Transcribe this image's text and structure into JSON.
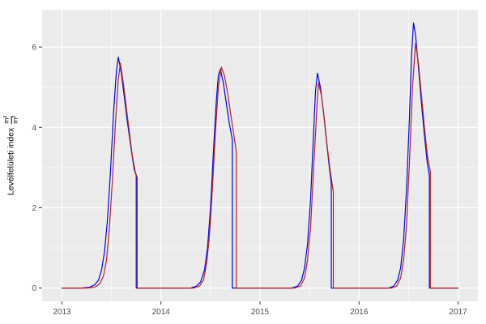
{
  "chart_data": {
    "type": "line",
    "title": "",
    "xlabel": "",
    "ylabel_text": "Levélfelületi index",
    "unit_numerator": "m²",
    "unit_denominator": "m²",
    "xlim": [
      2012.8,
      2017.2
    ],
    "ylim": [
      -0.33,
      6.93
    ],
    "x_ticks": [
      2013,
      2014,
      2015,
      2016,
      2017
    ],
    "y_ticks": [
      0,
      2,
      4,
      6
    ],
    "x_minor": [
      2013.5,
      2014.5,
      2015.5,
      2016.5
    ],
    "y_minor": [
      1,
      3,
      5
    ],
    "grid": true,
    "legend": "none",
    "panel_bg": "#EBEBEB",
    "grid_color": "#FFFFFF",
    "tick_color": "#333333",
    "label_color": "#4D4D4D",
    "series": [
      {
        "name": "blue",
        "color": "#0000EE",
        "points": [
          [
            2013.0,
            0
          ],
          [
            2013.2,
            0
          ],
          [
            2013.28,
            0.02
          ],
          [
            2013.33,
            0.08
          ],
          [
            2013.37,
            0.2
          ],
          [
            2013.4,
            0.45
          ],
          [
            2013.43,
            0.9
          ],
          [
            2013.46,
            1.7
          ],
          [
            2013.49,
            2.9
          ],
          [
            2013.52,
            4.3
          ],
          [
            2013.55,
            5.4
          ],
          [
            2013.57,
            5.75
          ],
          [
            2013.6,
            5.35
          ],
          [
            2013.63,
            4.75
          ],
          [
            2013.66,
            4.15
          ],
          [
            2013.7,
            3.45
          ],
          [
            2013.73,
            2.95
          ],
          [
            2013.75,
            2.8
          ],
          [
            2013.75,
            0
          ],
          [
            2014.0,
            0
          ],
          [
            2014.3,
            0
          ],
          [
            2014.36,
            0.05
          ],
          [
            2014.4,
            0.15
          ],
          [
            2014.44,
            0.45
          ],
          [
            2014.47,
            1.0
          ],
          [
            2014.5,
            2.0
          ],
          [
            2014.53,
            3.4
          ],
          [
            2014.56,
            4.7
          ],
          [
            2014.58,
            5.3
          ],
          [
            2014.6,
            5.45
          ],
          [
            2014.63,
            5.1
          ],
          [
            2014.66,
            4.6
          ],
          [
            2014.69,
            4.1
          ],
          [
            2014.72,
            3.7
          ],
          [
            2014.72,
            0
          ],
          [
            2015.0,
            0
          ],
          [
            2015.32,
            0
          ],
          [
            2015.38,
            0.05
          ],
          [
            2015.42,
            0.2
          ],
          [
            2015.45,
            0.5
          ],
          [
            2015.48,
            1.1
          ],
          [
            2015.51,
            2.2
          ],
          [
            2015.54,
            3.8
          ],
          [
            2015.56,
            4.9
          ],
          [
            2015.58,
            5.35
          ],
          [
            2015.61,
            5.0
          ],
          [
            2015.64,
            4.4
          ],
          [
            2015.67,
            3.7
          ],
          [
            2015.7,
            3.0
          ],
          [
            2015.72,
            2.6
          ],
          [
            2015.72,
            0
          ],
          [
            2016.0,
            0
          ],
          [
            2016.3,
            0
          ],
          [
            2016.35,
            0.05
          ],
          [
            2016.39,
            0.2
          ],
          [
            2016.42,
            0.5
          ],
          [
            2016.45,
            1.2
          ],
          [
            2016.48,
            2.5
          ],
          [
            2016.51,
            4.3
          ],
          [
            2016.53,
            5.8
          ],
          [
            2016.55,
            6.6
          ],
          [
            2016.57,
            6.3
          ],
          [
            2016.6,
            5.5
          ],
          [
            2016.63,
            4.6
          ],
          [
            2016.66,
            3.8
          ],
          [
            2016.69,
            3.1
          ],
          [
            2016.71,
            2.8
          ],
          [
            2016.71,
            0
          ],
          [
            2017.0,
            0
          ]
        ]
      },
      {
        "name": "red",
        "color": "#B22222",
        "points": [
          [
            2013.0,
            0
          ],
          [
            2013.25,
            0
          ],
          [
            2013.33,
            0.02
          ],
          [
            2013.38,
            0.1
          ],
          [
            2013.42,
            0.3
          ],
          [
            2013.45,
            0.7
          ],
          [
            2013.48,
            1.5
          ],
          [
            2013.51,
            2.7
          ],
          [
            2013.54,
            4.1
          ],
          [
            2013.57,
            5.2
          ],
          [
            2013.59,
            5.6
          ],
          [
            2013.62,
            5.1
          ],
          [
            2013.65,
            4.5
          ],
          [
            2013.68,
            3.9
          ],
          [
            2013.71,
            3.3
          ],
          [
            2013.74,
            2.9
          ],
          [
            2013.76,
            2.75
          ],
          [
            2013.76,
            0
          ],
          [
            2014.0,
            0
          ],
          [
            2014.33,
            0
          ],
          [
            2014.39,
            0.05
          ],
          [
            2014.43,
            0.2
          ],
          [
            2014.46,
            0.6
          ],
          [
            2014.49,
            1.3
          ],
          [
            2014.52,
            2.5
          ],
          [
            2014.55,
            3.9
          ],
          [
            2014.58,
            5.0
          ],
          [
            2014.61,
            5.5
          ],
          [
            2014.64,
            5.3
          ],
          [
            2014.67,
            4.9
          ],
          [
            2014.7,
            4.4
          ],
          [
            2014.73,
            3.9
          ],
          [
            2014.76,
            3.4
          ],
          [
            2014.76,
            0
          ],
          [
            2015.0,
            0
          ],
          [
            2015.35,
            0
          ],
          [
            2015.41,
            0.05
          ],
          [
            2015.45,
            0.25
          ],
          [
            2015.48,
            0.7
          ],
          [
            2015.51,
            1.5
          ],
          [
            2015.54,
            2.9
          ],
          [
            2015.57,
            4.3
          ],
          [
            2015.59,
            5.1
          ],
          [
            2015.62,
            4.8
          ],
          [
            2015.65,
            4.2
          ],
          [
            2015.68,
            3.5
          ],
          [
            2015.71,
            2.9
          ],
          [
            2015.74,
            2.4
          ],
          [
            2015.74,
            0
          ],
          [
            2016.0,
            0
          ],
          [
            2016.33,
            0
          ],
          [
            2016.38,
            0.05
          ],
          [
            2016.42,
            0.25
          ],
          [
            2016.45,
            0.7
          ],
          [
            2016.48,
            1.6
          ],
          [
            2016.51,
            3.2
          ],
          [
            2016.54,
            5.0
          ],
          [
            2016.57,
            6.1
          ],
          [
            2016.6,
            5.6
          ],
          [
            2016.63,
            4.8
          ],
          [
            2016.66,
            4.0
          ],
          [
            2016.69,
            3.3
          ],
          [
            2016.72,
            2.9
          ],
          [
            2016.72,
            0
          ],
          [
            2017.0,
            0
          ]
        ]
      }
    ]
  }
}
